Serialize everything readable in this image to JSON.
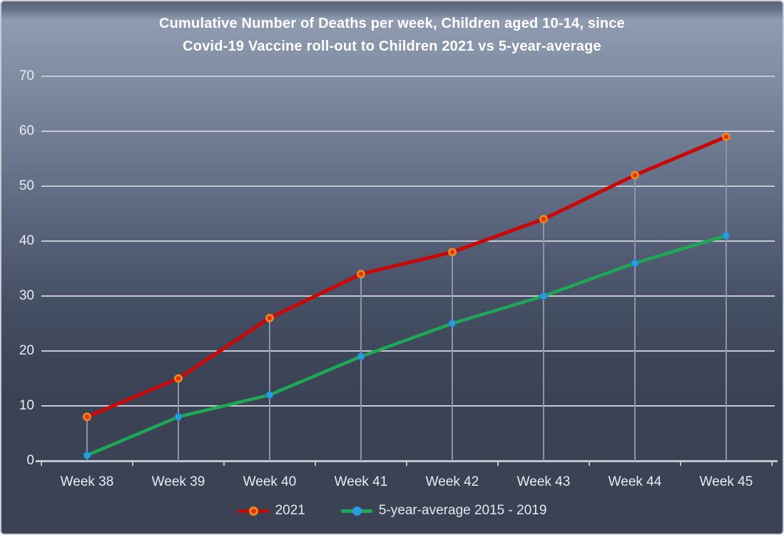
{
  "title": {
    "line1": "Cumulative Number of Deaths per week, Children aged 10-14, since",
    "line2": "Covid-19 Vaccine roll-out to Children 2021 vs 5-year-average"
  },
  "legend": {
    "items": [
      {
        "label": "2021",
        "line_color": "#b50d0b",
        "marker_fill": "#e0340e",
        "marker_ring": "#f08a1e"
      },
      {
        "label": "5-year-average 2015 - 2019",
        "line_color": "#1ea855",
        "marker_fill": "#2a9ce0",
        "marker_ring": ""
      }
    ]
  },
  "chart_data": {
    "type": "line",
    "title": "Cumulative Number of Deaths per week, Children aged 10-14, since Covid-19 Vaccine roll-out to Children 2021 vs 5-year-average",
    "categories": [
      "Week 38",
      "Week 39",
      "Week 40",
      "Week 41",
      "Week 42",
      "Week 43",
      "Week 44",
      "Week 45"
    ],
    "series": [
      {
        "name": "2021",
        "values": [
          8,
          15,
          26,
          34,
          38,
          44,
          52,
          59
        ],
        "color": "#c90808",
        "marker_fill": "#e0340e",
        "marker_ring": "#f08a1e",
        "line_width": 5
      },
      {
        "name": "5-year-average 2015 - 2019",
        "values": [
          1,
          8,
          12,
          19,
          25,
          30,
          36,
          41
        ],
        "color": "#1ea855",
        "marker_fill": "#2a9ce0",
        "marker_ring": "#1b82c4",
        "line_width": 4.5
      }
    ],
    "ylim": [
      0,
      70
    ],
    "yticks": [
      0,
      10,
      20,
      30,
      40,
      50,
      60,
      70
    ],
    "grid": true,
    "drop_lines": true,
    "legend_position": "bottom"
  },
  "colors": {
    "background_top": "#8e9bb1",
    "background_bottom": "#3a4254",
    "gridline": "#c3c8d2",
    "drop_line": "#8d95a4",
    "axis_line": "#bfc5cf",
    "tick_label": "#e9ecf2",
    "title_text": "#ffffff",
    "border": "#c7ccd5"
  }
}
